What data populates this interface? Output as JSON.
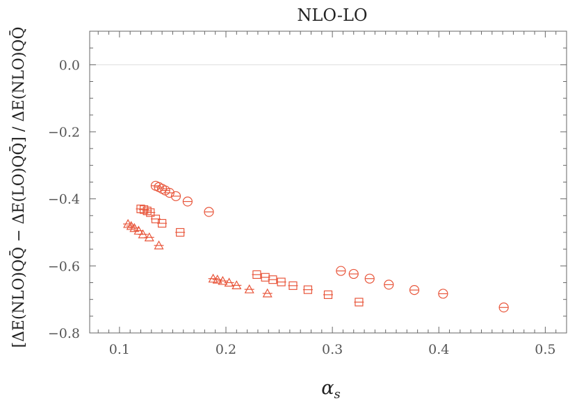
{
  "chart_data": {
    "type": "scatter",
    "title": "NLO-LO",
    "xlabel": "α",
    "xlabel_subscript": "s",
    "ylabel": "[ΔE(NLO)QQ̄ − ΔE(LO)QQ̄] / ΔE(NLO)QQ̄",
    "xlim": [
      0.072,
      0.52
    ],
    "ylim": [
      -0.8,
      0.1
    ],
    "x_ticks": [
      0.1,
      0.2,
      0.3,
      0.4,
      0.5
    ],
    "x_tick_labels": [
      "0.1",
      "0.2",
      "0.3",
      "0.4",
      "0.5"
    ],
    "y_ticks": [
      0.0,
      -0.2,
      -0.4,
      -0.6,
      -0.8
    ],
    "y_tick_labels": [
      "0.0",
      "−0.2",
      "−0.4",
      "−0.6",
      "−0.8"
    ],
    "grid": false,
    "reference_line_y": 0.0,
    "marker_color": "#e8553a",
    "series": [
      {
        "marker": "circle",
        "x": [
          0.134,
          0.137,
          0.14,
          0.143,
          0.147,
          0.153,
          0.164,
          0.184
        ],
        "y": [
          -0.361,
          -0.365,
          -0.37,
          -0.375,
          -0.382,
          -0.392,
          -0.408,
          -0.439
        ]
      },
      {
        "marker": "square",
        "x": [
          0.12,
          0.123,
          0.126,
          0.129,
          0.134,
          0.14,
          0.157
        ],
        "y": [
          -0.43,
          -0.432,
          -0.436,
          -0.441,
          -0.46,
          -0.473,
          -0.5
        ]
      },
      {
        "marker": "triangle",
        "x": [
          0.108,
          0.111,
          0.114,
          0.118,
          0.122,
          0.128,
          0.137
        ],
        "y": [
          -0.475,
          -0.481,
          -0.487,
          -0.495,
          -0.506,
          -0.515,
          -0.539
        ]
      },
      {
        "marker": "triangle",
        "x": [
          0.188,
          0.192,
          0.197,
          0.203,
          0.21,
          0.222,
          0.239
        ],
        "y": [
          -0.638,
          -0.641,
          -0.645,
          -0.65,
          -0.658,
          -0.67,
          -0.682
        ]
      },
      {
        "marker": "square",
        "x": [
          0.229,
          0.237,
          0.244,
          0.252,
          0.263,
          0.277,
          0.296,
          0.325
        ],
        "y": [
          -0.626,
          -0.634,
          -0.641,
          -0.648,
          -0.659,
          -0.671,
          -0.686,
          -0.708
        ]
      },
      {
        "marker": "circle",
        "x": [
          0.308,
          0.32,
          0.335,
          0.353,
          0.377,
          0.404,
          0.461
        ],
        "y": [
          -0.615,
          -0.624,
          -0.638,
          -0.656,
          -0.672,
          -0.683,
          -0.724
        ]
      }
    ]
  }
}
